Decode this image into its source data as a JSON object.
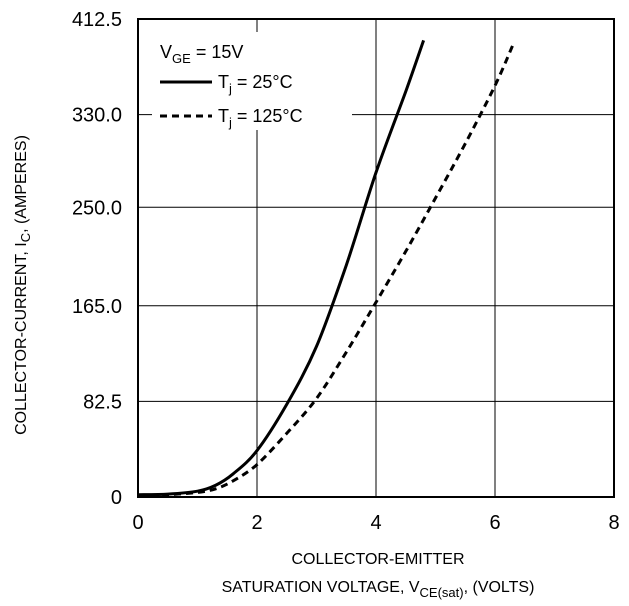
{
  "chart_data": {
    "type": "line",
    "xlabel_line1": "COLLECTOR-EMITTER",
    "xlabel_line2_pre": "SATURATION VOLTAGE, V",
    "xlabel_line2_sub": "CE(sat)",
    "xlabel_line2_post": ", (VOLTS)",
    "ylabel_pre": "COLLECTOR-CURRENT, I",
    "ylabel_sub": "C",
    "ylabel_post": ", (AMPERES)",
    "xlim": [
      0,
      8
    ],
    "ylim": [
      0,
      412.5
    ],
    "x_ticks": [
      "0",
      "2",
      "4",
      "6",
      "8"
    ],
    "y_ticks": [
      "0",
      "82.5",
      "165.0",
      "250.0",
      "330.0",
      "412.5"
    ],
    "grid": true,
    "legend": {
      "placement": "top-left",
      "header_pre": "V",
      "header_sub": "GE",
      "header_post": " = 15V",
      "entries": [
        {
          "pre": "T",
          "sub": "j",
          "post": " = 25°C",
          "style": "solid"
        },
        {
          "pre": "T",
          "sub": "j",
          "post": " = 125°C",
          "style": "dashed"
        }
      ]
    },
    "series": [
      {
        "style": "solid",
        "color": "#000000",
        "points": [
          [
            0,
            2
          ],
          [
            0.5,
            2.5
          ],
          [
            1.0,
            5
          ],
          [
            1.3,
            10
          ],
          [
            1.6,
            20
          ],
          [
            2.0,
            40
          ],
          [
            2.5,
            80
          ],
          [
            3.0,
            130
          ],
          [
            3.5,
            200
          ],
          [
            4.0,
            280
          ],
          [
            4.5,
            350
          ],
          [
            4.8,
            394
          ]
        ]
      },
      {
        "style": "dashed",
        "color": "#000000",
        "points": [
          [
            0,
            1
          ],
          [
            0.5,
            2
          ],
          [
            1.0,
            4
          ],
          [
            1.3,
            7
          ],
          [
            1.6,
            14
          ],
          [
            2.0,
            28
          ],
          [
            2.5,
            55
          ],
          [
            3.0,
            85
          ],
          [
            3.5,
            125
          ],
          [
            4.0,
            168
          ],
          [
            4.5,
            212
          ],
          [
            5.0,
            258
          ],
          [
            5.5,
            305
          ],
          [
            6.0,
            355
          ],
          [
            6.3,
            390
          ]
        ]
      }
    ]
  }
}
